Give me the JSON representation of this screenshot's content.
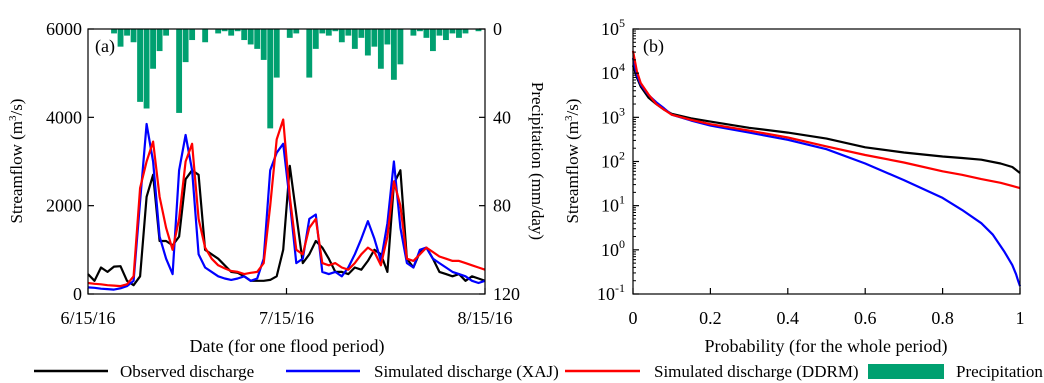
{
  "panel_a": {
    "label": "(a)",
    "xlabel": "Date (for one flood period)",
    "ylabel_left": "Streamflow (m",
    "ylabel_left_sup": "3",
    "ylabel_left_end": "/s)",
    "ylabel_right": "Precipitation (mm/day)"
  },
  "panel_b": {
    "label": "(b)",
    "xlabel": "Probability (for the whole period)",
    "ylabel": "Streamflow (m",
    "ylabel_sup": "3",
    "ylabel_end": "/s)"
  },
  "legend": [
    {
      "label": "Observed discharge",
      "color": "#000000",
      "kind": "line"
    },
    {
      "label": "Simulated discharge (XAJ)",
      "color": "#0000ff",
      "kind": "line"
    },
    {
      "label": "Simulated discharge (DDRM)",
      "color": "#ff0000",
      "kind": "line"
    },
    {
      "label": "Precipitation",
      "color": "#00a070",
      "kind": "bar"
    }
  ],
  "chart_data": [
    {
      "type": "line",
      "panel": "a",
      "x_ticks": [
        "6/15/16",
        "7/15/16",
        "8/15/16"
      ],
      "xlim": [
        0,
        61
      ],
      "ylim": [
        0,
        6000
      ],
      "y_ticks": [
        0,
        2000,
        4000,
        6000
      ],
      "y2lim": [
        0,
        120
      ],
      "y2_ticks": [
        0,
        40,
        80,
        120
      ],
      "y2_inverted": true,
      "series": [
        {
          "name": "Observed discharge",
          "color": "#000000",
          "x": [
            0,
            1,
            2,
            3,
            4,
            5,
            6,
            7,
            8,
            9,
            10,
            11,
            12,
            13,
            14,
            15,
            16,
            17,
            18,
            19,
            20,
            21,
            22,
            23,
            24,
            25,
            26,
            27,
            28,
            29,
            30,
            31,
            32,
            33,
            34,
            35,
            36,
            37,
            38,
            39,
            40,
            41,
            42,
            43,
            44,
            45,
            46,
            47,
            48,
            49,
            50,
            51,
            52,
            53,
            54,
            55,
            56,
            57,
            58,
            59,
            60,
            61
          ],
          "values": [
            450,
            300,
            600,
            500,
            620,
            630,
            300,
            200,
            400,
            2200,
            2700,
            1200,
            1200,
            1100,
            1300,
            2600,
            2800,
            2700,
            1000,
            900,
            800,
            650,
            500,
            480,
            400,
            300,
            300,
            300,
            320,
            400,
            1000,
            2900,
            1800,
            700,
            900,
            1200,
            1050,
            800,
            500,
            500,
            450,
            600,
            550,
            750,
            1000,
            900,
            500,
            2500,
            2800,
            800,
            600,
            950,
            1050,
            800,
            500,
            450,
            400,
            450,
            300,
            400,
            350,
            300
          ]
        },
        {
          "name": "Simulated discharge (XAJ)",
          "color": "#0000ff",
          "x": [
            0,
            1,
            2,
            3,
            4,
            5,
            6,
            7,
            8,
            9,
            10,
            11,
            12,
            13,
            14,
            15,
            16,
            17,
            18,
            19,
            20,
            21,
            22,
            23,
            24,
            25,
            26,
            27,
            28,
            29,
            30,
            31,
            32,
            33,
            34,
            35,
            36,
            37,
            38,
            39,
            40,
            41,
            42,
            43,
            44,
            45,
            46,
            47,
            48,
            49,
            50,
            51,
            52,
            53,
            54,
            55,
            56,
            57,
            58,
            59,
            60,
            61
          ],
          "values": [
            150,
            140,
            120,
            110,
            100,
            130,
            180,
            300,
            2100,
            3850,
            3000,
            1300,
            800,
            450,
            2800,
            3600,
            2800,
            900,
            600,
            500,
            400,
            350,
            320,
            350,
            400,
            300,
            350,
            800,
            2800,
            3200,
            3400,
            2100,
            700,
            800,
            1700,
            1800,
            500,
            450,
            500,
            400,
            600,
            900,
            1250,
            1650,
            1250,
            750,
            1600,
            3000,
            1500,
            700,
            600,
            1000,
            1050,
            800,
            700,
            600,
            500,
            450,
            400,
            300,
            250,
            300
          ]
        },
        {
          "name": "Simulated discharge (DDRM)",
          "color": "#ff0000",
          "x": [
            0,
            1,
            2,
            3,
            4,
            5,
            6,
            7,
            8,
            9,
            10,
            11,
            12,
            13,
            14,
            15,
            16,
            17,
            18,
            19,
            20,
            21,
            22,
            23,
            24,
            25,
            26,
            27,
            28,
            29,
            30,
            31,
            32,
            33,
            34,
            35,
            36,
            37,
            38,
            39,
            40,
            41,
            42,
            43,
            44,
            45,
            46,
            47,
            48,
            49,
            50,
            51,
            52,
            53,
            54,
            55,
            56,
            57,
            58,
            59,
            60,
            61
          ],
          "values": [
            250,
            230,
            220,
            200,
            190,
            180,
            220,
            400,
            2400,
            3000,
            3450,
            2200,
            1500,
            1000,
            1700,
            3000,
            3400,
            1700,
            1050,
            800,
            650,
            580,
            520,
            500,
            450,
            480,
            500,
            700,
            2000,
            3500,
            3950,
            2200,
            1000,
            900,
            1500,
            1700,
            700,
            650,
            700,
            600,
            550,
            700,
            900,
            1050,
            950,
            650,
            1300,
            2550,
            2000,
            800,
            750,
            900,
            1050,
            950,
            850,
            800,
            750,
            750,
            700,
            650,
            600,
            550
          ]
        },
        {
          "name": "Precipitation",
          "color": "#00a070",
          "kind": "bar",
          "axis": "right",
          "x": [
            0,
            1,
            2,
            3,
            4,
            5,
            6,
            7,
            8,
            9,
            10,
            11,
            12,
            13,
            14,
            15,
            16,
            17,
            18,
            19,
            20,
            21,
            22,
            23,
            24,
            25,
            26,
            27,
            28,
            29,
            30,
            31,
            32,
            33,
            34,
            35,
            36,
            37,
            38,
            39,
            40,
            41,
            42,
            43,
            44,
            45,
            46,
            47,
            48,
            49,
            50,
            51,
            52,
            53,
            54,
            55,
            56,
            57,
            58,
            59,
            60,
            61
          ],
          "values": [
            0,
            0,
            0,
            0,
            2,
            8,
            3,
            6,
            33,
            36,
            18,
            10,
            3,
            0,
            38,
            15,
            5,
            0,
            6,
            0,
            2,
            1,
            3,
            1,
            5,
            7,
            9,
            14,
            45,
            22,
            0,
            4,
            2,
            0,
            22,
            9,
            2,
            3,
            1,
            6,
            3,
            9,
            4,
            12,
            8,
            18,
            7,
            23,
            16,
            0,
            3,
            1,
            4,
            10,
            3,
            5,
            2,
            4,
            2,
            0,
            1,
            0
          ]
        }
      ]
    },
    {
      "type": "line",
      "panel": "b",
      "x_ticks": [
        0,
        0.2,
        0.4,
        0.6,
        0.8,
        1
      ],
      "xlim": [
        0,
        1
      ],
      "ylim": [
        0.1,
        100000
      ],
      "y_scale": "log",
      "y_tick_labels": [
        {
          "base": "10",
          "exp": "5"
        },
        {
          "base": "10",
          "exp": "4"
        },
        {
          "base": "10",
          "exp": "3"
        },
        {
          "base": "10",
          "exp": "2"
        },
        {
          "base": "10",
          "exp": "1"
        },
        {
          "base": "10",
          "exp": "0"
        },
        {
          "base": "10",
          "exp": "-1"
        }
      ],
      "series": [
        {
          "name": "Observed discharge",
          "color": "#000000",
          "x": [
            0,
            0.01,
            0.02,
            0.04,
            0.06,
            0.08,
            0.1,
            0.15,
            0.2,
            0.3,
            0.4,
            0.5,
            0.6,
            0.7,
            0.8,
            0.85,
            0.9,
            0.95,
            0.98,
            1.0
          ],
          "values": [
            15000,
            8000,
            5000,
            2800,
            2000,
            1500,
            1200,
            950,
            800,
            580,
            450,
            330,
            210,
            160,
            130,
            120,
            110,
            90,
            75,
            55
          ]
        },
        {
          "name": "Simulated discharge (XAJ)",
          "color": "#0000ff",
          "x": [
            0,
            0.01,
            0.02,
            0.04,
            0.06,
            0.08,
            0.1,
            0.15,
            0.2,
            0.3,
            0.4,
            0.5,
            0.6,
            0.7,
            0.8,
            0.85,
            0.9,
            0.93,
            0.96,
            0.98,
            0.99,
            0.995,
            1.0
          ],
          "values": [
            22000,
            9000,
            5500,
            3200,
            2200,
            1600,
            1150,
            850,
            650,
            450,
            310,
            190,
            90,
            38,
            15,
            8,
            4,
            2.2,
            0.9,
            0.45,
            0.28,
            0.2,
            0.15
          ]
        },
        {
          "name": "Simulated discharge (DDRM)",
          "color": "#ff0000",
          "x": [
            0,
            0.01,
            0.02,
            0.04,
            0.06,
            0.08,
            0.1,
            0.15,
            0.2,
            0.3,
            0.4,
            0.5,
            0.6,
            0.7,
            0.8,
            0.85,
            0.9,
            0.95,
            0.98,
            1.0
          ],
          "values": [
            32000,
            11000,
            6000,
            3300,
            2000,
            1500,
            1150,
            880,
            700,
            500,
            350,
            220,
            140,
            95,
            60,
            50,
            40,
            33,
            28,
            25
          ]
        }
      ]
    }
  ]
}
